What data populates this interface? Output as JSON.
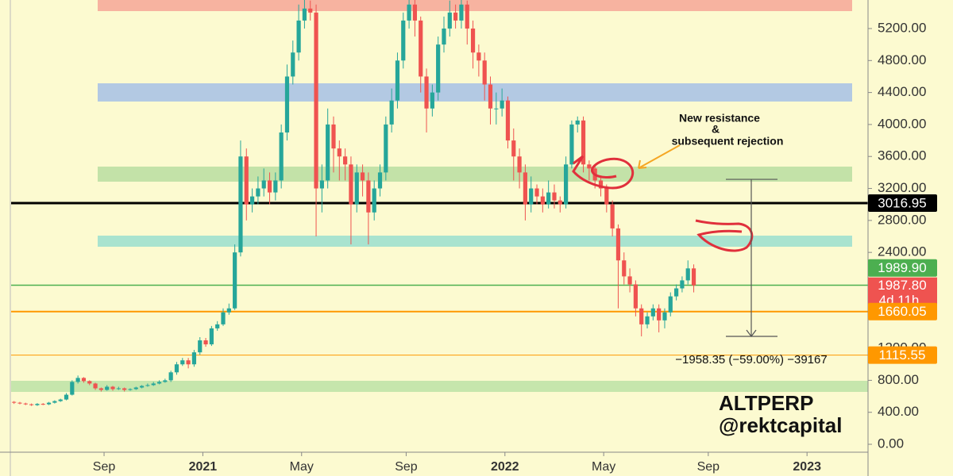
{
  "chart_data": {
    "type": "candlestick",
    "categories": [
      null,
      null,
      null,
      null,
      null,
      null,
      null,
      null,
      null,
      null,
      null,
      null,
      null,
      null,
      null,
      null,
      null,
      null,
      null,
      null,
      null,
      null,
      null,
      null,
      null,
      null,
      null,
      null,
      null,
      null,
      null,
      null,
      null,
      null,
      null,
      null,
      null,
      null,
      null,
      null,
      null,
      null,
      null,
      null,
      null,
      null,
      null,
      null,
      null,
      null,
      null,
      null,
      null,
      null,
      null,
      null,
      null,
      null,
      null,
      null,
      null,
      null,
      null,
      null,
      null,
      null,
      null,
      null,
      null,
      null,
      null,
      null,
      null,
      null,
      null,
      null,
      null,
      null,
      null,
      null,
      null,
      null,
      null,
      null,
      null,
      null,
      null,
      null,
      null,
      null,
      null,
      null,
      null,
      null,
      null,
      null,
      null,
      null,
      null,
      null,
      null,
      null,
      null,
      null,
      null,
      null,
      null,
      null,
      null,
      null,
      null,
      null,
      null,
      null,
      null,
      null,
      null,
      null
    ],
    "open": [
      530,
      520,
      510,
      500,
      490,
      505,
      500,
      520,
      540,
      560,
      620,
      780,
      830,
      790,
      760,
      700,
      680,
      720,
      690,
      700,
      680,
      690,
      710,
      730,
      740,
      760,
      780,
      800,
      900,
      1000,
      1050,
      1000,
      1150,
      1300,
      1250,
      1450,
      1500,
      1650,
      1700,
      2400,
      3600,
      3000,
      3100,
      3200,
      3300,
      3150,
      3300,
      3900,
      4600,
      4900,
      5300,
      5450,
      5400,
      3200,
      3300,
      4000,
      3700,
      3600,
      3500,
      3000,
      3400,
      3300,
      2900,
      3200,
      3400,
      4000,
      4300,
      4800,
      5300,
      5500,
      5300,
      4600,
      4200,
      4400,
      5000,
      5200,
      5400,
      5300,
      5500,
      5200,
      4900,
      4800,
      4500,
      4200,
      4200,
      4300,
      3800,
      3600,
      3400,
      3000,
      3200,
      3100,
      3000,
      3150,
      3050,
      3000,
      3500,
      4000,
      4050,
      3500,
      3450,
      3300,
      3200,
      3000,
      2700,
      2300,
      2100,
      2000,
      1700,
      1500,
      1600,
      1700,
      1550,
      1650,
      1850,
      1950,
      2050,
      2200
    ],
    "high": [
      540,
      530,
      520,
      510,
      515,
      515,
      530,
      550,
      570,
      640,
      800,
      860,
      840,
      800,
      770,
      710,
      740,
      730,
      720,
      710,
      700,
      720,
      740,
      760,
      780,
      800,
      820,
      920,
      1030,
      1080,
      1080,
      1180,
      1340,
      1330,
      1480,
      1540,
      1700,
      1760,
      2500,
      3800,
      3700,
      3200,
      3350,
      3450,
      3400,
      3400,
      4000,
      4750,
      5050,
      5500,
      5600,
      5550,
      5500,
      3500,
      4200,
      4100,
      3800,
      3700,
      3600,
      3500,
      3500,
      3400,
      3300,
      3500,
      4100,
      4450,
      4900,
      5400,
      5600,
      5600,
      5350,
      4700,
      4500,
      5100,
      5350,
      5550,
      5500,
      5600,
      5550,
      5300,
      5000,
      4900,
      4600,
      4400,
      4450,
      4350,
      3950,
      3700,
      3500,
      3350,
      3250,
      3200,
      3300,
      3250,
      3100,
      3600,
      4050,
      4100,
      4100,
      3550,
      3500,
      3350,
      3250,
      3050,
      2750,
      2400,
      2200,
      2050,
      1750,
      1650,
      1750,
      1750,
      1700,
      1900,
      2000,
      2100,
      2300,
      2250
    ],
    "low": [
      505,
      500,
      490,
      480,
      480,
      490,
      490,
      510,
      530,
      550,
      610,
      760,
      770,
      740,
      680,
      660,
      670,
      670,
      680,
      660,
      670,
      680,
      700,
      720,
      730,
      750,
      770,
      780,
      870,
      980,
      950,
      970,
      1120,
      1220,
      1230,
      1420,
      1480,
      1620,
      1680,
      2350,
      2800,
      2900,
      3000,
      3100,
      3000,
      3050,
      3200,
      3800,
      4500,
      4800,
      5200,
      5300,
      2600,
      2900,
      3200,
      3400,
      3300,
      3300,
      2500,
      2900,
      3100,
      2500,
      2800,
      3100,
      3300,
      3900,
      4200,
      4700,
      5200,
      5100,
      4400,
      3900,
      4100,
      4300,
      4900,
      5100,
      5200,
      5200,
      5000,
      4700,
      4600,
      4300,
      4000,
      4000,
      4100,
      3700,
      3300,
      3200,
      2800,
      2900,
      3000,
      2900,
      2950,
      2950,
      2900,
      2950,
      3450,
      3900,
      3400,
      3300,
      3200,
      3100,
      2900,
      2600,
      1700,
      2000,
      1900,
      1600,
      1350,
      1450,
      1550,
      1400,
      1450,
      1600,
      1800,
      1900,
      2000,
      1900
    ],
    "close": [
      520,
      510,
      500,
      490,
      505,
      500,
      520,
      540,
      560,
      620,
      780,
      830,
      790,
      760,
      700,
      680,
      720,
      690,
      700,
      680,
      690,
      710,
      730,
      740,
      760,
      780,
      800,
      900,
      1000,
      1050,
      1000,
      1150,
      1300,
      1250,
      1450,
      1500,
      1650,
      1700,
      2400,
      3600,
      3000,
      3100,
      3200,
      3300,
      3150,
      3300,
      3900,
      4600,
      4900,
      5300,
      5450,
      5400,
      3200,
      3300,
      4000,
      3700,
      3600,
      3500,
      3000,
      3400,
      3300,
      2900,
      3200,
      3400,
      4000,
      4300,
      4800,
      5300,
      5500,
      5300,
      4600,
      4200,
      4400,
      5000,
      5200,
      5400,
      5300,
      5500,
      5200,
      4900,
      4800,
      4500,
      4200,
      4200,
      4300,
      3800,
      3600,
      3400,
      3000,
      3200,
      3100,
      3000,
      3150,
      3050,
      3000,
      3500,
      4000,
      4050,
      3500,
      3450,
      3300,
      3200,
      3000,
      2700,
      2300,
      2100,
      2000,
      1700,
      1500,
      1600,
      1700,
      1550,
      1650,
      1850,
      1950,
      2050,
      2200,
      1987.8
    ],
    "up_color": "#26a69a",
    "down_color": "#ef5350",
    "xlim": [
      -0.5,
      147
    ],
    "xticks": [
      {
        "value": 15.5,
        "label": "Sep"
      },
      {
        "value": 32.5,
        "label": "2021"
      },
      {
        "value": 49.5,
        "label": "May"
      },
      {
        "value": 67.5,
        "label": "Sep"
      },
      {
        "value": 84.5,
        "label": "2022"
      },
      {
        "value": 101.5,
        "label": "May"
      },
      {
        "value": 119.5,
        "label": "Sep"
      },
      {
        "value": 136.5,
        "label": "2023"
      }
    ],
    "ylim": [
      -99,
      5557
    ],
    "yticks": [
      {
        "value": 0,
        "label": "0.00"
      },
      {
        "value": 400,
        "label": "400.00"
      },
      {
        "value": 800,
        "label": "800.00"
      },
      {
        "value": 1200,
        "label": "1200.00"
      },
      {
        "value": 1600,
        "label": "1600.00"
      },
      {
        "value": 2000,
        "label": "2000.00"
      },
      {
        "value": 2400,
        "label": "2400.00"
      },
      {
        "value": 2800,
        "label": "2800.00"
      },
      {
        "value": 3200,
        "label": "3200.00"
      },
      {
        "value": 3600,
        "label": "3600.00"
      },
      {
        "value": 4000,
        "label": "4000.00"
      },
      {
        "value": 4400,
        "label": "4400.00"
      },
      {
        "value": 4800,
        "label": "4800.00"
      },
      {
        "value": 5200,
        "label": "5200.00"
      }
    ],
    "zones": [
      {
        "from": 5418,
        "to": 5600,
        "color": "#f7b3a0"
      },
      {
        "from": 4287,
        "to": 4515,
        "color": "#b3c9e3"
      },
      {
        "from": 3285,
        "to": 3473,
        "color": "#c3e2a8"
      },
      {
        "from": 2471,
        "to": 2610,
        "color": "#a9e3cf"
      },
      {
        "from": 655,
        "to": 794,
        "color": "#c6e6ac"
      }
    ],
    "price_lines": [
      {
        "value": 3016.95,
        "label": "3016.95",
        "color": "#000000",
        "width": 3
      },
      {
        "value": 1989.9,
        "label": "1989.90",
        "color": "#4caf50",
        "width": 1.5
      },
      {
        "value": 1660.05,
        "label": "1660.05",
        "color": "#ff9800",
        "width": 2
      },
      {
        "value": 1115.55,
        "label": "1115.55",
        "color": "#ff9800",
        "width": 1
      }
    ],
    "last_price": {
      "value": 1987.8,
      "label": "1987.80",
      "countdown": "4d 11h",
      "color": "#ef5350"
    },
    "annotations": {
      "note": [
        "New resistance",
        "&",
        "subsequent rejection"
      ],
      "symbol": "ALTPERP",
      "author": "@rektcapital"
    },
    "measure": {
      "from": 3314,
      "to": 1350,
      "label": "−1958.35 (−59.00%) −39167"
    }
  }
}
